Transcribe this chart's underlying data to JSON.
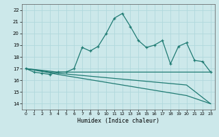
{
  "xlabel": "Humidex (Indice chaleur)",
  "xlim": [
    -0.5,
    23.5
  ],
  "ylim": [
    13.5,
    22.5
  ],
  "yticks": [
    14,
    15,
    16,
    17,
    18,
    19,
    20,
    21,
    22
  ],
  "xticks": [
    0,
    1,
    2,
    3,
    4,
    5,
    6,
    7,
    8,
    9,
    10,
    11,
    12,
    13,
    14,
    15,
    16,
    17,
    18,
    19,
    20,
    21,
    22,
    23
  ],
  "bg_color": "#cce8ea",
  "grid_color": "#b0d8dc",
  "line_color": "#1e7a72",
  "lines": [
    {
      "x": [
        0,
        1,
        2,
        3,
        4,
        5,
        6,
        7,
        8,
        9,
        10,
        11,
        12,
        13,
        14,
        15,
        16,
        17,
        18,
        19,
        20,
        21,
        22,
        23
      ],
      "y": [
        17.0,
        16.7,
        16.6,
        16.5,
        16.7,
        16.7,
        17.0,
        18.8,
        18.5,
        18.9,
        20.0,
        21.3,
        21.7,
        20.6,
        19.4,
        18.8,
        19.0,
        19.4,
        17.4,
        18.9,
        19.2,
        17.7,
        17.6,
        16.7
      ],
      "marker": true
    },
    {
      "x": [
        0,
        4,
        23
      ],
      "y": [
        17.0,
        16.7,
        16.7
      ],
      "marker": false
    },
    {
      "x": [
        0,
        4,
        20,
        23
      ],
      "y": [
        17.0,
        16.6,
        15.6,
        14.0
      ],
      "marker": false
    },
    {
      "x": [
        0,
        4,
        20,
        23
      ],
      "y": [
        17.0,
        16.5,
        14.7,
        14.0
      ],
      "marker": false
    }
  ]
}
